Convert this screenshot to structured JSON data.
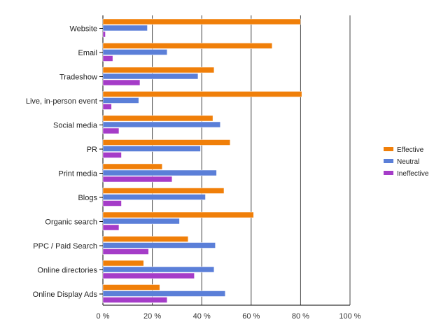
{
  "chart_data": {
    "type": "bar",
    "orientation": "horizontal",
    "categories": [
      "Website",
      "Email",
      "Tradeshow",
      "Live, in-person event",
      "Social media",
      "PR",
      "Print media",
      "Blogs",
      "Organic search",
      "PPC / Paid Search",
      "Online directories",
      "Online Display Ads"
    ],
    "series": [
      {
        "name": "Effective",
        "color": "#f07f09",
        "values": [
          80,
          68.5,
          45,
          80.5,
          44.5,
          51.5,
          24,
          49,
          61,
          34.5,
          16.5,
          23
        ]
      },
      {
        "name": "Neutral",
        "color": "#5b7fd8",
        "values": [
          18,
          26,
          38.5,
          14.5,
          47.5,
          39.5,
          46,
          41.5,
          31,
          45.5,
          45,
          49.5
        ]
      },
      {
        "name": "Ineffective",
        "color": "#a53cc8",
        "values": [
          1,
          4,
          15,
          3.5,
          6.5,
          7.5,
          28,
          7.5,
          6.5,
          18.5,
          37,
          26
        ]
      }
    ],
    "xlim": [
      0,
      100
    ],
    "x_ticks": [
      "0 %",
      "20 %",
      "40 %",
      "60 %",
      "80 %",
      "100 %"
    ],
    "grid": true,
    "legend": "right"
  }
}
